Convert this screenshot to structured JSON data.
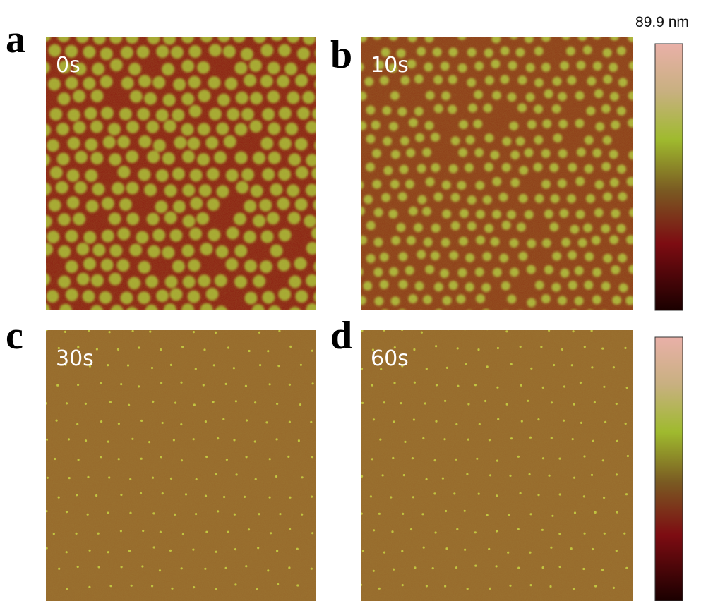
{
  "panels": [
    {
      "letter": "a",
      "time": "0s"
    },
    {
      "letter": "b",
      "time": "10s"
    },
    {
      "letter": "c",
      "time": "30s"
    },
    {
      "letter": "d",
      "time": "60s"
    }
  ],
  "colorbar": {
    "label": "89.9 nm"
  }
}
